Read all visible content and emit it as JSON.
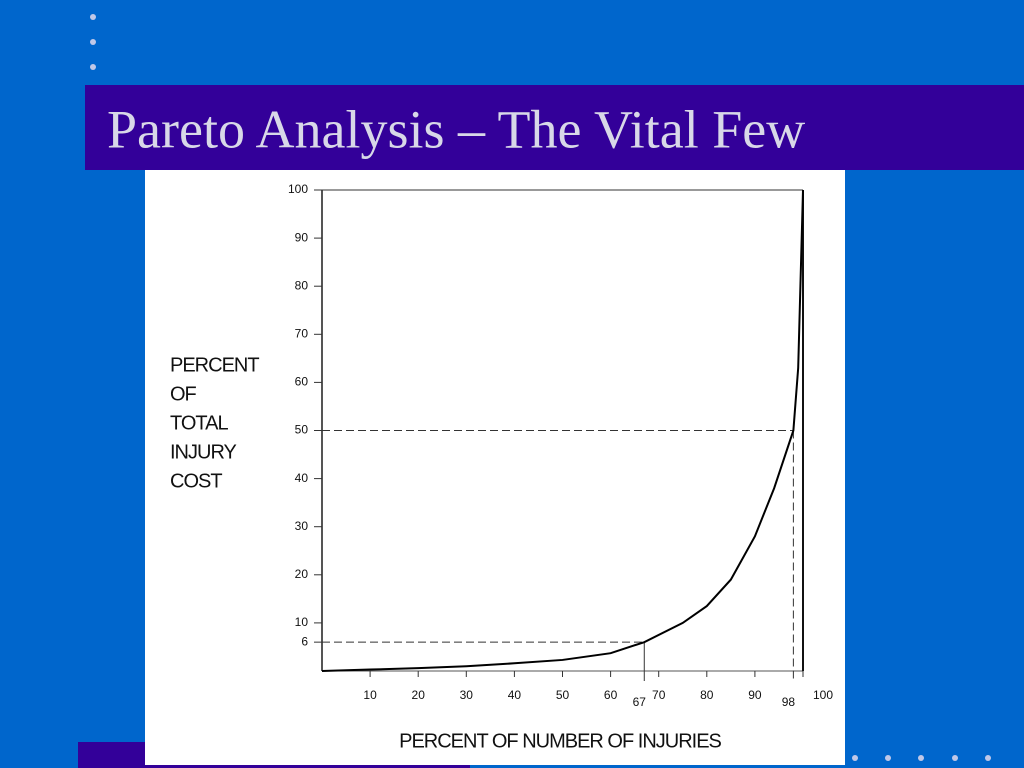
{
  "chart_data": {
    "type": "line",
    "title": "Pareto Analysis – The Vital Few",
    "xlabel": "PERCENT OF NUMBER OF INJURIES",
    "ylabel": [
      "PERCENT",
      "OF",
      "TOTAL",
      "INJURY",
      "COST"
    ],
    "x": [
      0,
      10,
      20,
      30,
      40,
      50,
      60,
      67,
      75,
      80,
      85,
      90,
      94,
      98,
      99,
      100
    ],
    "series": [
      {
        "color": "#000000",
        "values": [
          0,
          0.3,
          0.6,
          1,
          1.6,
          2.3,
          3.7,
          6,
          10,
          13.5,
          19,
          28,
          38,
          50,
          63,
          100
        ]
      }
    ],
    "xlim": [
      0,
      100
    ],
    "ylim": [
      0,
      100
    ],
    "xticks": [
      10,
      20,
      30,
      40,
      50,
      60,
      70,
      80,
      90,
      100
    ],
    "yticks": [
      6,
      10,
      20,
      30,
      40,
      50,
      60,
      70,
      80,
      90,
      100
    ],
    "reference_lines": [
      {
        "x": 67,
        "y": 6
      },
      {
        "x": 98,
        "y": 50
      }
    ]
  }
}
